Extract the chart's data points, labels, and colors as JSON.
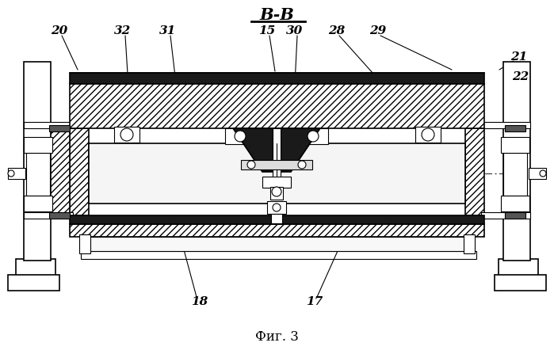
{
  "title": "В-В",
  "caption": "Фиг. 3",
  "bg_color": "#ffffff",
  "line_color": "#000000",
  "labels": [
    "20",
    "32",
    "31",
    "15",
    "30",
    "28",
    "29",
    "21",
    "22",
    "18",
    "17"
  ]
}
